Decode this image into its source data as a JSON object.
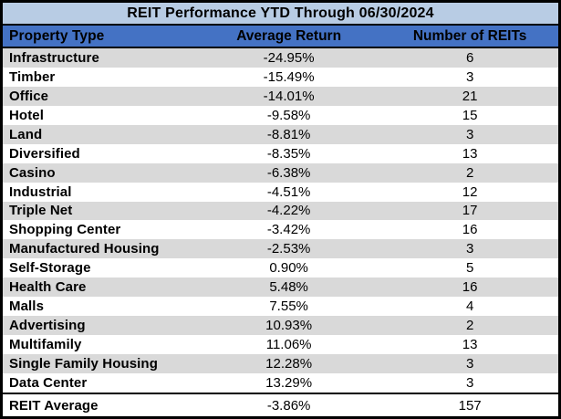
{
  "title": "REIT Performance YTD Through 06/30/2024",
  "columns": [
    "Property Type",
    "Average Return",
    "Number of REITs"
  ],
  "rows": [
    [
      "Infrastructure",
      "-24.95%",
      "6"
    ],
    [
      "Timber",
      "-15.49%",
      "3"
    ],
    [
      "Office",
      "-14.01%",
      "21"
    ],
    [
      "Hotel",
      "-9.58%",
      "15"
    ],
    [
      "Land",
      "-8.81%",
      "3"
    ],
    [
      "Diversified",
      "-8.35%",
      "13"
    ],
    [
      "Casino",
      "-6.38%",
      "2"
    ],
    [
      "Industrial",
      "-4.51%",
      "12"
    ],
    [
      "Triple Net",
      "-4.22%",
      "17"
    ],
    [
      "Shopping Center",
      "-3.42%",
      "16"
    ],
    [
      "Manufactured Housing",
      "-2.53%",
      "3"
    ],
    [
      "Self-Storage",
      "0.90%",
      "5"
    ],
    [
      "Health Care",
      "5.48%",
      "16"
    ],
    [
      "Malls",
      "7.55%",
      "4"
    ],
    [
      "Advertising",
      "10.93%",
      "2"
    ],
    [
      "Multifamily",
      "11.06%",
      "13"
    ],
    [
      "Single Family Housing",
      "12.28%",
      "3"
    ],
    [
      "Data Center",
      "13.29%",
      "3"
    ]
  ],
  "footer": [
    "REIT Average",
    "-3.86%",
    "157"
  ],
  "colors": {
    "title_bg": "#b8cce4",
    "header_bg": "#4472c4",
    "row_alt_bg": "#d9d9d9",
    "row_bg": "#ffffff",
    "border": "#000000",
    "text": "#000000"
  },
  "chart_data": {
    "type": "table",
    "title": "REIT Performance YTD Through 06/30/2024",
    "columns": [
      "Property Type",
      "Average Return",
      "Number of REITs"
    ],
    "rows": [
      {
        "property_type": "Infrastructure",
        "average_return_pct": -24.95,
        "number_of_reits": 6
      },
      {
        "property_type": "Timber",
        "average_return_pct": -15.49,
        "number_of_reits": 3
      },
      {
        "property_type": "Office",
        "average_return_pct": -14.01,
        "number_of_reits": 21
      },
      {
        "property_type": "Hotel",
        "average_return_pct": -9.58,
        "number_of_reits": 15
      },
      {
        "property_type": "Land",
        "average_return_pct": -8.81,
        "number_of_reits": 3
      },
      {
        "property_type": "Diversified",
        "average_return_pct": -8.35,
        "number_of_reits": 13
      },
      {
        "property_type": "Casino",
        "average_return_pct": -6.38,
        "number_of_reits": 2
      },
      {
        "property_type": "Industrial",
        "average_return_pct": -4.51,
        "number_of_reits": 12
      },
      {
        "property_type": "Triple Net",
        "average_return_pct": -4.22,
        "number_of_reits": 17
      },
      {
        "property_type": "Shopping Center",
        "average_return_pct": -3.42,
        "number_of_reits": 16
      },
      {
        "property_type": "Manufactured Housing",
        "average_return_pct": -2.53,
        "number_of_reits": 3
      },
      {
        "property_type": "Self-Storage",
        "average_return_pct": 0.9,
        "number_of_reits": 5
      },
      {
        "property_type": "Health Care",
        "average_return_pct": 5.48,
        "number_of_reits": 16
      },
      {
        "property_type": "Malls",
        "average_return_pct": 7.55,
        "number_of_reits": 4
      },
      {
        "property_type": "Advertising",
        "average_return_pct": 10.93,
        "number_of_reits": 2
      },
      {
        "property_type": "Multifamily",
        "average_return_pct": 11.06,
        "number_of_reits": 13
      },
      {
        "property_type": "Single Family Housing",
        "average_return_pct": 12.28,
        "number_of_reits": 3
      },
      {
        "property_type": "Data Center",
        "average_return_pct": 13.29,
        "number_of_reits": 3
      }
    ],
    "summary_row": {
      "property_type": "REIT Average",
      "average_return_pct": -3.86,
      "number_of_reits": 157
    }
  }
}
